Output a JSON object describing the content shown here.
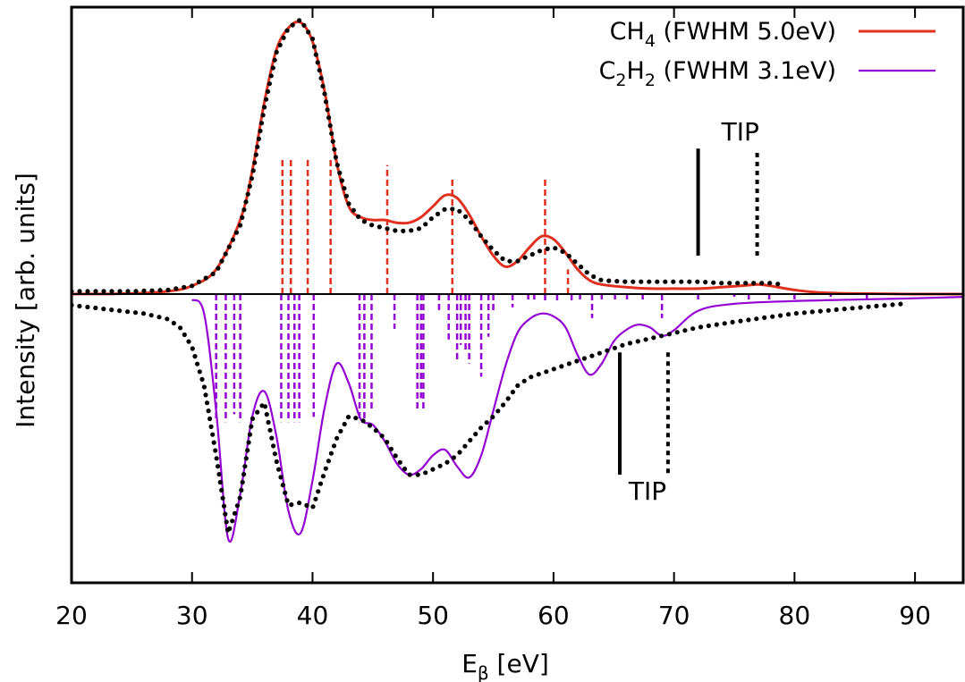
{
  "chart_data": {
    "type": "line",
    "title": "",
    "xlabel": {
      "main": "E",
      "sub": "β",
      "rest": " [eV]"
    },
    "ylabel": "Intensity [arb. units]",
    "xlim": [
      20,
      94
    ],
    "xticks": [
      20,
      30,
      40,
      50,
      60,
      70,
      80,
      90
    ],
    "ylim": [
      -1.0,
      1.0
    ],
    "legend": {
      "position": "top-right",
      "entries": [
        {
          "pre": "CH",
          "sub": "4",
          "post": " (FWHM 5.0eV)",
          "color": "#e0301e"
        },
        {
          "pre": "C",
          "sub": "2",
          "mid": "H",
          "sub2": "2",
          "post": " (FWHM 3.1eV)",
          "color": "#9400d3"
        }
      ]
    },
    "annotations": [
      {
        "text": "TIP",
        "x": 75.5,
        "y": 0.56
      },
      {
        "text": "TIP",
        "x": 67.8,
        "y": -0.74
      }
    ],
    "tip_markers": [
      {
        "x": 72.0,
        "y1": 0.14,
        "y2": 0.53,
        "style": "solid"
      },
      {
        "x": 76.9,
        "y1": 0.14,
        "y2": 0.53,
        "style": "dotted"
      },
      {
        "x": 65.5,
        "y1": -0.21,
        "y2": -0.65,
        "style": "solid"
      },
      {
        "x": 69.5,
        "y1": -0.21,
        "y2": -0.65,
        "style": "dotted"
      }
    ],
    "series": [
      {
        "color": "#e0301e",
        "style": "solid",
        "x": [
          20,
          25,
          28,
          30,
          32,
          34,
          35,
          36,
          37,
          38,
          39,
          40,
          41,
          42,
          43,
          44,
          45,
          46,
          47,
          48,
          49,
          50,
          51,
          52,
          53,
          54,
          55,
          56,
          57,
          58,
          59,
          60,
          61,
          62,
          63,
          64,
          66,
          68,
          70,
          72,
          74,
          76,
          77,
          78,
          80,
          82,
          85,
          90,
          94
        ],
        "y": [
          0.0,
          0.002,
          0.01,
          0.03,
          0.09,
          0.27,
          0.45,
          0.7,
          0.89,
          0.97,
          0.99,
          0.92,
          0.74,
          0.48,
          0.32,
          0.28,
          0.27,
          0.27,
          0.26,
          0.26,
          0.28,
          0.32,
          0.36,
          0.35,
          0.29,
          0.21,
          0.14,
          0.1,
          0.12,
          0.17,
          0.21,
          0.2,
          0.15,
          0.09,
          0.05,
          0.035,
          0.025,
          0.02,
          0.02,
          0.02,
          0.025,
          0.032,
          0.035,
          0.03,
          0.015,
          0.006,
          0.002,
          0.0,
          0.0
        ]
      },
      {
        "color": "#000000",
        "style": "dotted",
        "x": [
          20,
          25,
          28,
          30,
          32,
          34,
          35,
          36,
          37,
          38,
          39,
          40,
          41,
          42,
          43,
          44,
          45,
          46,
          47,
          48,
          49,
          50,
          51,
          52,
          53,
          54,
          55,
          56,
          57,
          58,
          59,
          60,
          61,
          62,
          63,
          64,
          66,
          68,
          70,
          72,
          74,
          76,
          78,
          79
        ],
        "y": [
          0.01,
          0.01,
          0.015,
          0.03,
          0.08,
          0.25,
          0.43,
          0.68,
          0.88,
          0.97,
          1.0,
          0.93,
          0.73,
          0.48,
          0.33,
          0.27,
          0.25,
          0.24,
          0.23,
          0.23,
          0.24,
          0.28,
          0.31,
          0.31,
          0.27,
          0.21,
          0.16,
          0.12,
          0.12,
          0.14,
          0.16,
          0.17,
          0.15,
          0.11,
          0.07,
          0.05,
          0.045,
          0.045,
          0.045,
          0.045,
          0.04,
          0.04,
          0.04,
          0.035
        ]
      },
      {
        "color": "#9400d3",
        "style": "solid",
        "x": [
          30,
          31,
          32,
          33,
          34,
          35,
          36,
          37,
          38,
          39,
          40,
          41,
          42,
          43,
          44,
          45,
          46,
          47,
          48,
          49,
          50,
          51,
          52,
          53,
          54,
          55,
          56,
          57,
          58,
          59,
          60,
          61,
          62,
          63,
          64,
          65,
          66,
          67,
          68,
          69,
          70,
          72,
          75,
          80,
          85,
          90,
          94
        ],
        "y": [
          -0.02,
          -0.07,
          -0.42,
          -0.88,
          -0.72,
          -0.44,
          -0.35,
          -0.51,
          -0.78,
          -0.86,
          -0.67,
          -0.41,
          -0.25,
          -0.32,
          -0.45,
          -0.47,
          -0.53,
          -0.61,
          -0.65,
          -0.63,
          -0.58,
          -0.56,
          -0.62,
          -0.66,
          -0.58,
          -0.42,
          -0.26,
          -0.14,
          -0.09,
          -0.07,
          -0.08,
          -0.12,
          -0.22,
          -0.29,
          -0.25,
          -0.17,
          -0.13,
          -0.11,
          -0.12,
          -0.15,
          -0.13,
          -0.06,
          -0.035,
          -0.025,
          -0.02,
          -0.015,
          -0.01
        ]
      },
      {
        "color": "#000000",
        "style": "dotted",
        "x": [
          20,
          22,
          24,
          26,
          28,
          29,
          30,
          31,
          32,
          33,
          34,
          35,
          36,
          37,
          38,
          39,
          40,
          41,
          42,
          43,
          44,
          45,
          46,
          47,
          48,
          49,
          50,
          51,
          52,
          53,
          54,
          55,
          56,
          57,
          58,
          60,
          62,
          64,
          66,
          68,
          70,
          72,
          75,
          80,
          85,
          89
        ],
        "y": [
          -0.04,
          -0.05,
          -0.06,
          -0.07,
          -0.09,
          -0.12,
          -0.19,
          -0.33,
          -0.58,
          -0.86,
          -0.73,
          -0.45,
          -0.39,
          -0.6,
          -0.76,
          -0.75,
          -0.77,
          -0.64,
          -0.52,
          -0.44,
          -0.45,
          -0.48,
          -0.52,
          -0.59,
          -0.65,
          -0.65,
          -0.63,
          -0.61,
          -0.58,
          -0.53,
          -0.48,
          -0.44,
          -0.39,
          -0.33,
          -0.3,
          -0.27,
          -0.24,
          -0.21,
          -0.18,
          -0.16,
          -0.14,
          -0.12,
          -0.1,
          -0.07,
          -0.05,
          -0.035
        ]
      }
    ],
    "sticks": [
      {
        "color": "#e0301e",
        "style": "dashed",
        "x": [
          37.5,
          38.2,
          39.6,
          41.5,
          46.2,
          51.6,
          59.3,
          61.2
        ],
        "h": [
          0.5,
          0.5,
          0.5,
          0.5,
          0.47,
          0.42,
          0.42,
          0.09
        ]
      },
      {
        "color": "#9400d3",
        "style": "dashed",
        "x": [
          32.0,
          32.8,
          33.5,
          34.0,
          37.4,
          38.0,
          38.5,
          38.9,
          40.1,
          43.9,
          44.3,
          44.9,
          46.8,
          48.7,
          49.0,
          49.2,
          50.5,
          51.3,
          52.0,
          52.3,
          52.7,
          53.0,
          54.0,
          54.6,
          55.0,
          56.6,
          57.9,
          58.4,
          59.3,
          60.3,
          61.5,
          62.2,
          63.2,
          64.0,
          65.1,
          66.1,
          67.4,
          69.0,
          72.0,
          75.0,
          76.2,
          77.9,
          80.0,
          83.0,
          86.0
        ],
        "h": [
          0.48,
          0.48,
          0.45,
          0.48,
          0.48,
          0.48,
          0.48,
          0.48,
          0.46,
          0.48,
          0.48,
          0.43,
          0.13,
          0.43,
          0.39,
          0.43,
          0.06,
          0.17,
          0.25,
          0.19,
          0.21,
          0.26,
          0.31,
          0.16,
          0.07,
          0.05,
          0.02,
          0.02,
          0.03,
          0.03,
          0.03,
          0.02,
          0.09,
          0.02,
          0.02,
          0.02,
          0.02,
          0.09,
          0.02,
          0.01,
          0.02,
          0.02,
          0.02,
          0.01,
          0.02
        ]
      }
    ]
  }
}
